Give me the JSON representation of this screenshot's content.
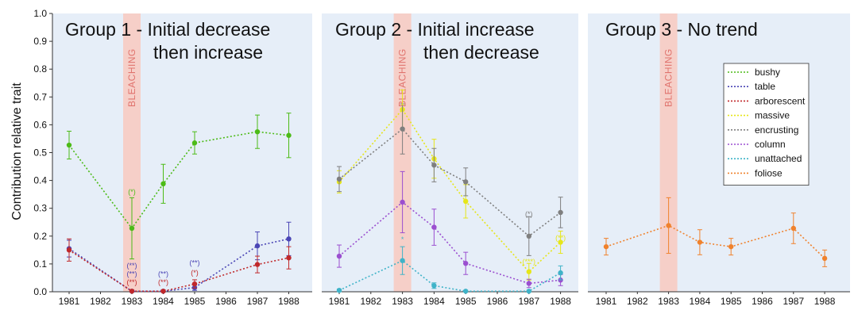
{
  "chart_data": {
    "type": "line",
    "ylabel": "Contribution relative trait",
    "ylim": [
      0,
      1
    ],
    "yticks": [
      "0.0",
      "0.1",
      "0.2",
      "0.3",
      "0.4",
      "0.5",
      "0.6",
      "0.7",
      "0.8",
      "0.9",
      "1.0"
    ],
    "years": [
      1981,
      1982,
      1983,
      1984,
      1985,
      1986,
      1987,
      1988
    ],
    "bleaching_label": "BLEACHING",
    "bleaching_year": 1983,
    "legend": [
      {
        "name": "bushy",
        "color": "#4cbb17"
      },
      {
        "name": "table",
        "color": "#4a45b5"
      },
      {
        "name": "arborescent",
        "color": "#c0282a"
      },
      {
        "name": "massive",
        "color": "#e6e619"
      },
      {
        "name": "encrusting",
        "color": "#7f7f7f"
      },
      {
        "name": "column",
        "color": "#9b4fd0"
      },
      {
        "name": "unattached",
        "color": "#3fb3c8"
      },
      {
        "name": "foliose",
        "color": "#f0822d"
      }
    ],
    "panels": [
      {
        "title_line1": "Group 1 - Initial decrease",
        "title_line2": "then increase",
        "series": [
          {
            "name": "bushy",
            "color": "#4cbb17",
            "x": [
              1981,
              1983,
              1984,
              1985,
              1987,
              1988
            ],
            "y": [
              0.527,
              0.228,
              0.388,
              0.535,
              0.575,
              0.562
            ],
            "err": [
              0.05,
              0.11,
              0.07,
              0.04,
              0.06,
              0.08
            ]
          },
          {
            "name": "table",
            "color": "#4a45b5",
            "x": [
              1981,
              1983,
              1984,
              1985,
              1987,
              1988
            ],
            "y": [
              0.155,
              0.002,
              0.002,
              0.015,
              0.165,
              0.19
            ],
            "err": [
              0.03,
              0.005,
              0.005,
              0.01,
              0.05,
              0.06
            ]
          },
          {
            "name": "arborescent",
            "color": "#c0282a",
            "x": [
              1981,
              1983,
              1984,
              1985,
              1987,
              1988
            ],
            "y": [
              0.15,
              0.002,
              0.002,
              0.028,
              0.098,
              0.122
            ],
            "err": [
              0.04,
              0.005,
              0.005,
              0.015,
              0.03,
              0.04
            ]
          }
        ],
        "markers": [
          {
            "year": 1983,
            "y": 0.35,
            "text": "(*)",
            "color": "#4cbb17"
          },
          {
            "year": 1983,
            "y": 0.085,
            "text": "(**)",
            "color": "#4a45b5"
          },
          {
            "year": 1983,
            "y": 0.055,
            "text": "(**)",
            "color": "#4a45b5"
          },
          {
            "year": 1983,
            "y": 0.025,
            "text": "(**)",
            "color": "#c0282a"
          },
          {
            "year": 1984,
            "y": 0.055,
            "text": "(**)",
            "color": "#4a45b5"
          },
          {
            "year": 1984,
            "y": 0.025,
            "text": "(**)",
            "color": "#c0282a"
          },
          {
            "year": 1985,
            "y": 0.095,
            "text": "(**)",
            "color": "#4a45b5"
          },
          {
            "year": 1985,
            "y": 0.06,
            "text": "(*)",
            "color": "#c0282a"
          }
        ]
      },
      {
        "title_line1": "Group 2 - Initial increase",
        "title_line2": "then decrease",
        "series": [
          {
            "name": "massive",
            "color": "#e6e619",
            "x": [
              1981,
              1983,
              1984,
              1985,
              1987,
              1988
            ],
            "y": [
              0.395,
              0.655,
              0.478,
              0.325,
              0.072,
              0.178
            ],
            "err": [
              0.04,
              0.07,
              0.07,
              0.06,
              0.03,
              0.04
            ]
          },
          {
            "name": "encrusting",
            "color": "#7f7f7f",
            "x": [
              1981,
              1983,
              1984,
              1985,
              1987,
              1988
            ],
            "y": [
              0.405,
              0.585,
              0.455,
              0.395,
              0.2,
              0.285
            ],
            "err": [
              0.045,
              0.09,
              0.06,
              0.05,
              0.07,
              0.055
            ]
          },
          {
            "name": "column",
            "color": "#9b4fd0",
            "x": [
              1981,
              1983,
              1984,
              1985,
              1987,
              1988
            ],
            "y": [
              0.128,
              0.322,
              0.232,
              0.102,
              0.03,
              0.042
            ],
            "err": [
              0.04,
              0.11,
              0.065,
              0.04,
              0.015,
              0.02
            ]
          },
          {
            "name": "unattached",
            "color": "#3fb3c8",
            "x": [
              1981,
              1983,
              1984,
              1985,
              1987,
              1988
            ],
            "y": [
              0.005,
              0.112,
              0.022,
              0.002,
              0.002,
              0.068
            ],
            "err": [
              0.005,
              0.05,
              0.01,
              0.003,
              0.003,
              0.025
            ]
          }
        ],
        "markers": [
          {
            "year": 1983,
            "y": 0.66,
            "text": "*",
            "color": "#e6e619"
          },
          {
            "year": 1983,
            "y": 0.18,
            "text": "*",
            "color": "#3fb3c8"
          },
          {
            "year": 1987,
            "y": 0.27,
            "text": "(*)",
            "color": "#7f7f7f"
          },
          {
            "year": 1987,
            "y": 0.1,
            "text": "(***)",
            "color": "#e6e619"
          },
          {
            "year": 1988,
            "y": 0.185,
            "text": "(**)",
            "color": "#e6e619"
          }
        ]
      },
      {
        "title_line1": "Group 3 - No trend",
        "title_line2": "",
        "series": [
          {
            "name": "foliose",
            "color": "#f0822d",
            "x": [
              1981,
              1983,
              1984,
              1985,
              1987,
              1988
            ],
            "y": [
              0.162,
              0.238,
              0.178,
              0.162,
              0.228,
              0.12
            ],
            "err": [
              0.03,
              0.1,
              0.045,
              0.03,
              0.055,
              0.03
            ]
          }
        ],
        "markers": []
      }
    ]
  }
}
